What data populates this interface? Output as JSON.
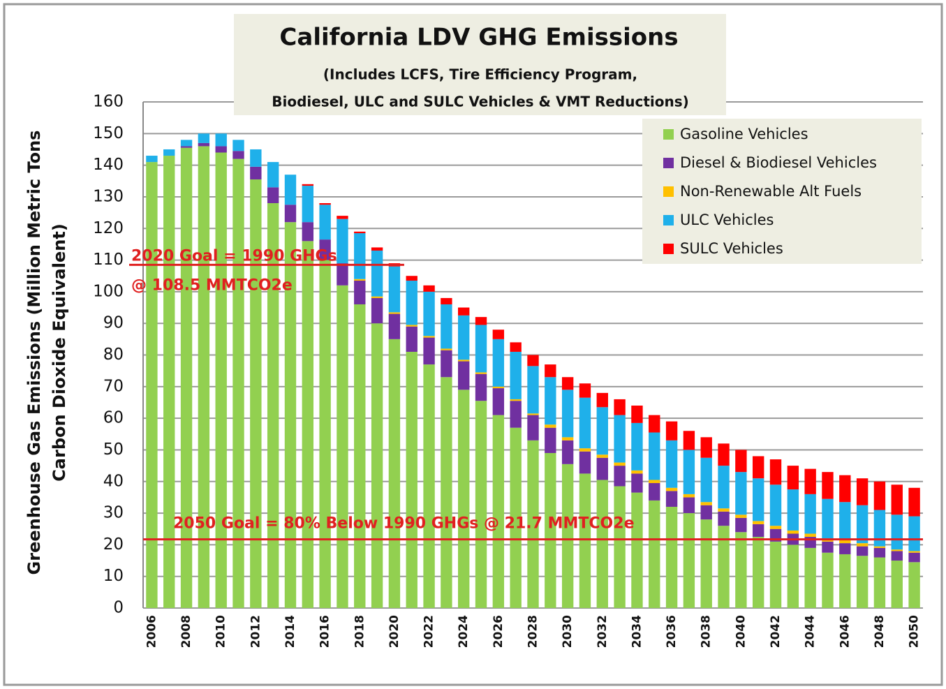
{
  "chart_data": {
    "type": "stacked_bar",
    "title": "California LDV GHG Emissions",
    "subtitle": [
      "(Includes  LCFS, Tire Efficiency Program,",
      "Biodiesel, ULC and SULC Vehicles & VMT Reductions)"
    ],
    "y_label": [
      "Greenhouse Gas Emissions (Million Metric Tons",
      "Carbon Dioxide Equivalent)"
    ],
    "categories": [
      "2006",
      null,
      "2008",
      null,
      "2010",
      null,
      "2012",
      null,
      "2014",
      null,
      "2016",
      null,
      "2018",
      null,
      "2020",
      null,
      "2022",
      null,
      "2024",
      null,
      "2026",
      null,
      "2028",
      null,
      "2030",
      null,
      "2032",
      null,
      "2034",
      null,
      "2036",
      null,
      "2038",
      null,
      "2040",
      null,
      "2042",
      null,
      "2044",
      null,
      "2046",
      null,
      "2048",
      null,
      "2050"
    ],
    "series": [
      {
        "name": "Gasoline Vehicles",
        "color": "#92d050",
        "values": [
          141,
          143,
          145.5,
          146,
          144,
          142,
          135.5,
          128,
          122,
          116,
          110,
          102,
          96,
          90,
          85,
          81,
          77,
          73,
          69,
          65.5,
          61,
          57,
          53,
          49,
          45.5,
          42.5,
          40.5,
          38.5,
          36.5,
          34,
          32,
          30,
          28,
          26,
          24,
          22.5,
          21,
          20,
          19,
          17.5,
          17,
          16.5,
          16,
          15,
          14.5
        ]
      },
      {
        "name": "Diesel & Biodiesel Vehicles",
        "color": "#7030a0",
        "values": [
          0,
          0,
          0.5,
          1,
          2,
          2.5,
          4,
          5,
          5.5,
          6,
          6.5,
          7,
          7.5,
          8,
          8,
          8,
          8.5,
          8.5,
          9,
          8.5,
          8.5,
          8.5,
          8,
          8,
          7.5,
          7,
          7,
          6.5,
          6,
          5.5,
          5,
          5,
          4.5,
          4.5,
          4.5,
          4,
          4,
          3.5,
          3.5,
          3.5,
          3.5,
          3,
          3,
          3,
          3
        ]
      },
      {
        "name": "Non-Renewable Alt Fuels",
        "color": "#ffc000",
        "values": [
          0,
          0,
          0,
          0,
          0,
          0,
          0,
          0,
          0,
          0,
          0,
          0,
          0.5,
          0.5,
          0.5,
          0.5,
          0.5,
          0.5,
          0.5,
          0.5,
          0.5,
          0.5,
          0.5,
          1,
          1,
          1,
          1,
          1,
          1,
          1,
          1,
          1,
          1,
          1,
          1,
          1,
          1,
          1,
          1,
          1,
          1,
          1,
          0.5,
          0.5,
          0.5
        ]
      },
      {
        "name": "ULC  Vehicles",
        "color": "#1fb0ea",
        "values": [
          2,
          2,
          2,
          3,
          4,
          3.5,
          5.5,
          8,
          9.5,
          11.5,
          11,
          14,
          14.5,
          14.5,
          14.5,
          14,
          14,
          14,
          14,
          15,
          15,
          15,
          15,
          15,
          15,
          16,
          15,
          15,
          15,
          15,
          15,
          14,
          14,
          13.5,
          13.5,
          13.5,
          13,
          13,
          12.5,
          12.5,
          12,
          12,
          11.5,
          11,
          11
        ]
      },
      {
        "name": "SULC Vehicles",
        "color": "#ff0000",
        "values": [
          0,
          0,
          0,
          0,
          0,
          0,
          0,
          0,
          0,
          0.5,
          0.5,
          1,
          0.5,
          1,
          1,
          1.5,
          2,
          2,
          2.5,
          2.5,
          3,
          3,
          3.5,
          4,
          4,
          4.5,
          4.5,
          5,
          5.5,
          5.5,
          6,
          6,
          6.5,
          7,
          7,
          7,
          8,
          7.5,
          8,
          8.5,
          8.5,
          8.5,
          9,
          9.5,
          9
        ]
      }
    ],
    "ylim": [
      0,
      160
    ],
    "yticks": [
      0,
      10,
      20,
      30,
      40,
      50,
      60,
      70,
      80,
      90,
      100,
      110,
      120,
      130,
      140,
      150,
      160
    ],
    "grid": true,
    "legend": "upper right",
    "goals": [
      {
        "value": 108.5,
        "x_end": "2020",
        "color": "#e02020",
        "text": [
          "2020 Goal = 1990 GHGs",
          "@ 108.5 MMTCO2e"
        ]
      },
      {
        "value": 21.7,
        "color": "#e02020",
        "text": [
          "2050 Goal = 80% Below 1990 GHGs @ 21.7 MMTCO2e"
        ]
      }
    ]
  }
}
